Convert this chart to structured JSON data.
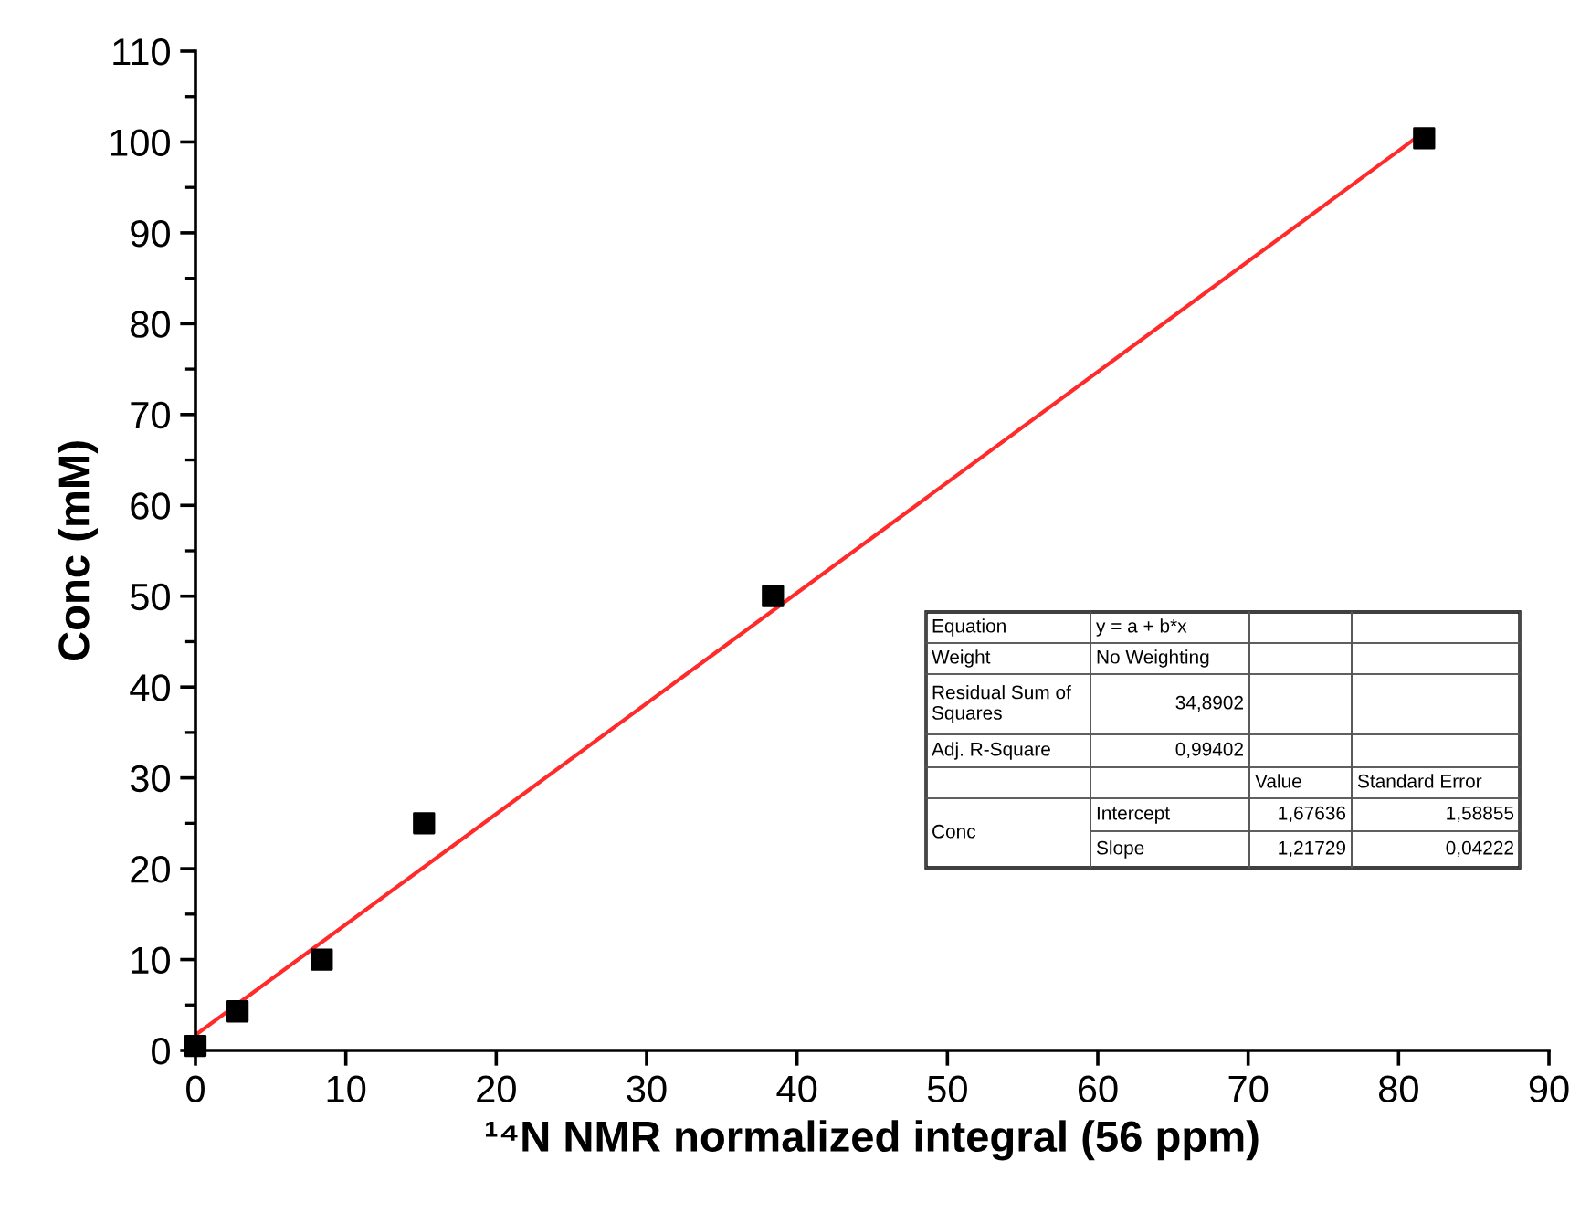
{
  "chart_data": {
    "type": "scatter",
    "xlabel": "¹⁴N NMR normalized integral (56 ppm)",
    "ylabel": "Conc (mM)",
    "xlim": [
      0,
      90
    ],
    "xticks": [
      0,
      10,
      20,
      30,
      40,
      50,
      60,
      70,
      80,
      90
    ],
    "ylim": [
      0,
      110
    ],
    "yticks": [
      0,
      10,
      20,
      30,
      40,
      50,
      60,
      70,
      80,
      90,
      100,
      110
    ],
    "grid": false,
    "legend": false,
    "marker": "square",
    "series": [
      {
        "color": "#000000",
        "x": [
          0,
          2.8,
          8.4,
          15.2,
          38.4,
          81.7
        ],
        "values": [
          0.5,
          4.3,
          10,
          25,
          50,
          100.4
        ]
      },
      {
        "type": "line",
        "color": "#ff2a2a",
        "marker": "none",
        "line_style": "solid",
        "x": [
          0,
          81.7
        ],
        "values": [
          1.7,
          101.1
        ]
      }
    ],
    "annotations": [
      "Equation",
      "y = a + b*x",
      "Weight",
      "No Weighting",
      "Residual Sum of Squares",
      "34,8902",
      "Adj. R-Square",
      "0,99402",
      "Value",
      "Standard Error",
      "Conc",
      "Intercept",
      "1,67636",
      "1,58855",
      "Slope",
      "1,21729",
      "0,04222"
    ]
  }
}
